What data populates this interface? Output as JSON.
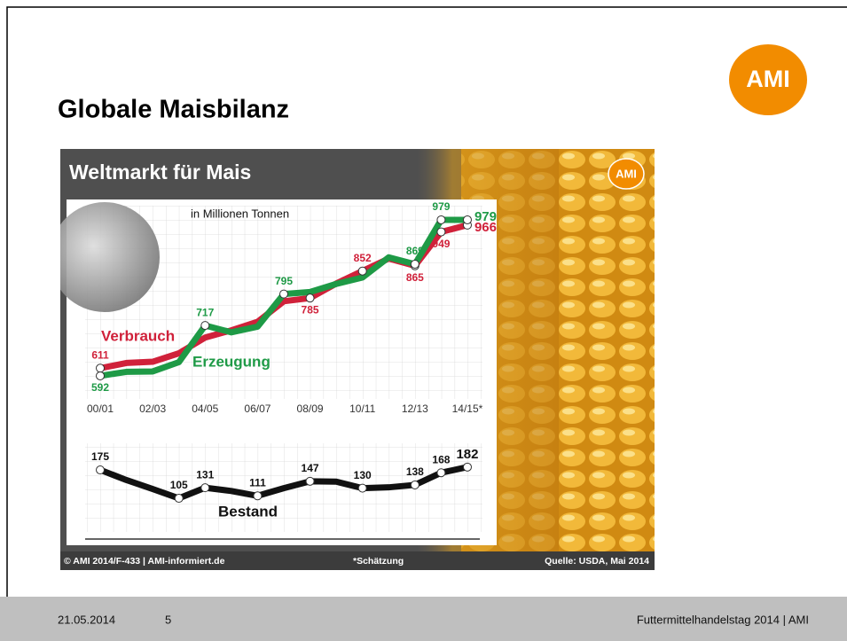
{
  "header": {
    "title": "Globale Maisbilanz",
    "logo": "AMI"
  },
  "chart_frame": {
    "title": "Weltmarkt für Mais",
    "logo": "AMI",
    "copyright": "© AMI 2014/F-433 | AMI-informiert.de",
    "note": "*Schätzung",
    "source": "Quelle: USDA, Mai 2014"
  },
  "chart_data": [
    {
      "type": "line",
      "subtitle": "in Millionen Tonnen",
      "categories": [
        "00/01",
        null,
        "02/03",
        null,
        "04/05",
        null,
        "06/07",
        null,
        "08/09",
        null,
        "10/11",
        null,
        "12/13",
        null,
        "14/15*"
      ],
      "series": [
        {
          "name": "Verbrauch",
          "color": "#d0213a",
          "values": [
            611,
            624,
            627,
            648,
            687,
            705,
            726,
            777,
            785,
            821,
            852,
            883,
            865,
            949,
            966
          ],
          "value_labels": [
            "611",
            null,
            null,
            null,
            null,
            null,
            null,
            null,
            "785",
            null,
            "852",
            null,
            "865",
            "949",
            "966"
          ]
        },
        {
          "name": "Erzeugung",
          "color": "#1e9a46",
          "values": [
            592,
            602,
            603,
            626,
            717,
            700,
            714,
            795,
            800,
            820,
            836,
            886,
            869,
            979,
            979
          ],
          "value_labels": [
            "592",
            null,
            null,
            null,
            "717",
            null,
            null,
            "795",
            null,
            null,
            null,
            null,
            "869",
            "979",
            "979"
          ]
        }
      ],
      "ylim": [
        540,
        1000
      ]
    },
    {
      "type": "line",
      "series": [
        {
          "name": "Bestand",
          "color": "#111111",
          "values": [
            175,
            150,
            128,
            105,
            131,
            123,
            111,
            130,
            147,
            146,
            130,
            132,
            138,
            168,
            182
          ],
          "value_labels": [
            "175",
            null,
            null,
            "105",
            "131",
            null,
            "111",
            null,
            "147",
            null,
            "130",
            null,
            "138",
            "168",
            "182"
          ]
        }
      ],
      "ylim": [
        60,
        200
      ]
    }
  ],
  "footer": {
    "date": "21.05.2014",
    "page": "5",
    "event": "Futtermittelhandelstag 2014 | AMI"
  }
}
